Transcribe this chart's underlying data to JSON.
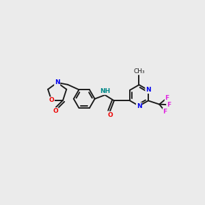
{
  "background_color": "#ebebeb",
  "bond_color": "#1a1a1a",
  "atom_colors": {
    "N": "#0000ee",
    "O": "#ee0000",
    "F": "#e020e0",
    "NH": "#008888",
    "C": "#1a1a1a"
  },
  "lw": 1.4
}
